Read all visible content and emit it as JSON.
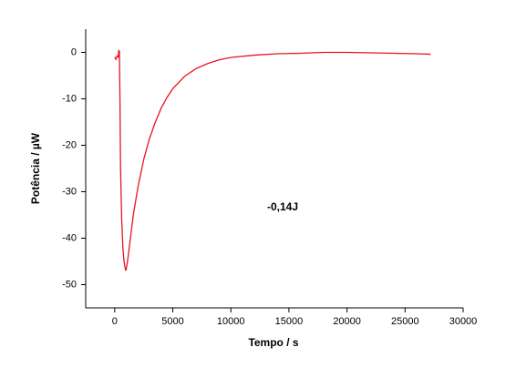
{
  "chart_data": {
    "type": "line",
    "x_label": "Tempo / s",
    "y_label": "Potência / µW",
    "annotation": "-0,14J",
    "x": [
      0,
      100,
      200,
      300,
      350,
      400,
      450,
      500,
      600,
      700,
      800,
      900,
      950,
      1000,
      1100,
      1200,
      1400,
      1600,
      1800,
      2000,
      2500,
      3000,
      3500,
      4000,
      4500,
      5000,
      6000,
      7000,
      8000,
      9000,
      10000,
      12000,
      14000,
      16000,
      18000,
      20000,
      22000,
      24000,
      26000,
      27200
    ],
    "series": [
      {
        "color": "#e8141c",
        "values": [
          -1,
          -1.5,
          -0.8,
          -1,
          0.5,
          0.2,
          -10,
          -25,
          -36,
          -42,
          -45,
          -46.5,
          -47,
          -46.5,
          -45,
          -43,
          -39,
          -35,
          -32,
          -29,
          -23,
          -18.5,
          -15,
          -12,
          -9.7,
          -7.8,
          -5.2,
          -3.5,
          -2.4,
          -1.6,
          -1.1,
          -0.6,
          -0.3,
          -0.2,
          0,
          0,
          -0.1,
          -0.2,
          -0.3,
          -0.4
        ]
      }
    ],
    "xlim": [
      -2500,
      30000
    ],
    "xticks": [
      0,
      5000,
      10000,
      15000,
      20000,
      25000,
      30000
    ],
    "ylim": [
      -55,
      5
    ],
    "yticks": [
      0,
      -10,
      -20,
      -30,
      -40,
      -50
    ]
  }
}
